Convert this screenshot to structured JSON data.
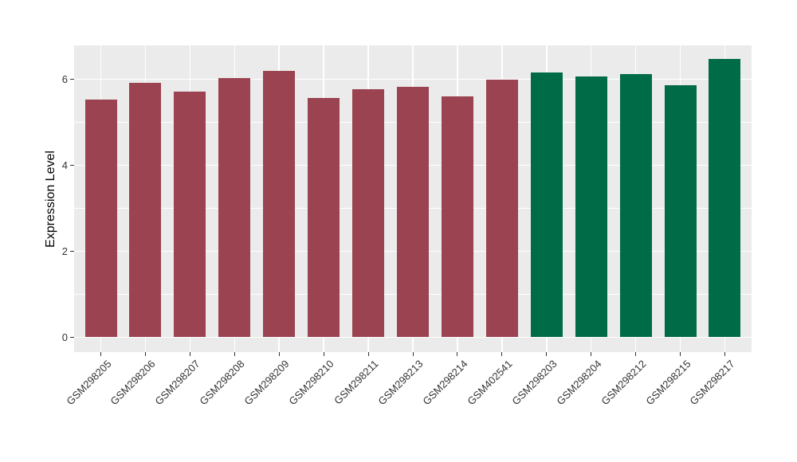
{
  "chart_data": {
    "type": "bar",
    "title": "",
    "xlabel": "",
    "ylabel": "Expression Level",
    "categories": [
      "GSM298205",
      "GSM298206",
      "GSM298207",
      "GSM298208",
      "GSM298209",
      "GSM298210",
      "GSM298211",
      "GSM298213",
      "GSM298214",
      "GSM402541",
      "GSM298203",
      "GSM298204",
      "GSM298212",
      "GSM298215",
      "GSM298217"
    ],
    "values": [
      5.52,
      5.92,
      5.72,
      6.02,
      6.19,
      5.57,
      5.76,
      5.83,
      5.61,
      5.99,
      6.15,
      6.06,
      6.12,
      5.86,
      6.47
    ],
    "bar_colors": [
      "#9b4350",
      "#9b4350",
      "#9b4350",
      "#9b4350",
      "#9b4350",
      "#9b4350",
      "#9b4350",
      "#9b4350",
      "#9b4350",
      "#9b4350",
      "#006b47",
      "#006b47",
      "#006b47",
      "#006b47",
      "#006b47"
    ],
    "color_groups": {
      "maroon": "#9b4350",
      "green": "#006b47"
    },
    "yticks": [
      0,
      2,
      4,
      6
    ],
    "yticks_minor": [
      1,
      3,
      5
    ],
    "ylim": [
      -0.35,
      6.78
    ],
    "bar_width_fraction": 0.72,
    "legend": "none",
    "grid": true,
    "panel_background": "#ebebeb",
    "gridline_color": "#ffffff",
    "axis_text_color": "#333333",
    "x_label_angle_deg": 45
  }
}
